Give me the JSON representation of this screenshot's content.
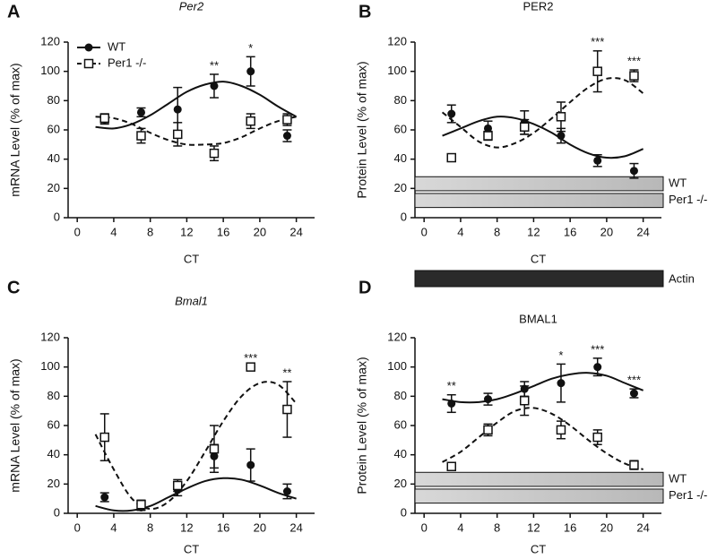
{
  "chart_data": [
    {
      "type": "line",
      "panel": "A",
      "title": "Per2",
      "title_italic": true,
      "ylabel": "mRNA Level (% of max)",
      "xlabel": "CT",
      "x": [
        3,
        7,
        11,
        15,
        19,
        23
      ],
      "xlim": [
        -1,
        26
      ],
      "xticks": [
        0,
        4,
        8,
        12,
        16,
        20,
        24
      ],
      "ylim": [
        0,
        120
      ],
      "yticks": [
        0,
        20,
        40,
        60,
        80,
        100,
        120
      ],
      "legend": "upper left",
      "series": [
        {
          "name": "WT",
          "color": "#111111",
          "marker": "circle",
          "dash": false,
          "values": [
            67,
            72,
            74,
            90,
            100,
            56
          ],
          "errors": [
            3,
            3,
            15,
            8,
            10,
            4
          ],
          "fit": {
            "x": [
              2,
              4,
              6,
              8,
              10,
              12,
              14,
              16,
              18,
              20,
              22,
              24
            ],
            "values": [
              62,
              61,
              64,
              70,
              78,
              86,
              91,
              93,
              90,
              84,
              76,
              69
            ]
          }
        },
        {
          "name": "Per1 -/-",
          "color": "#111111",
          "marker": "square",
          "dash": true,
          "values": [
            68,
            56,
            57,
            44,
            66,
            67
          ],
          "errors": [
            3,
            5,
            8,
            5,
            5,
            4
          ],
          "fit": {
            "x": [
              2,
              4,
              6,
              8,
              10,
              12,
              14,
              16,
              18,
              20,
              22,
              24
            ],
            "values": [
              69,
              68,
              64,
              58,
              53,
              50,
              50,
              51,
              55,
              61,
              66,
              69
            ]
          }
        }
      ],
      "annotations": [
        {
          "text": "**",
          "x": 15
        },
        {
          "text": "*",
          "x": 19
        }
      ]
    },
    {
      "type": "line",
      "panel": "B",
      "title": "PER2",
      "title_italic": false,
      "ylabel": "Protein Level (% of max)",
      "xlabel": "CT",
      "x": [
        3,
        7,
        11,
        15,
        19,
        23
      ],
      "xlim": [
        -1,
        26
      ],
      "xticks": [
        0,
        4,
        8,
        12,
        16,
        20,
        24
      ],
      "ylim": [
        0,
        120
      ],
      "yticks": [
        0,
        20,
        40,
        60,
        80,
        100,
        120
      ],
      "blots": [
        "WT",
        "Per1 -/-"
      ],
      "series": [
        {
          "name": "WT",
          "color": "#111111",
          "marker": "circle",
          "dash": false,
          "values": [
            71,
            61,
            65,
            56,
            39,
            32
          ],
          "errors": [
            6,
            5,
            8,
            5,
            4,
            5
          ],
          "fit": {
            "x": [
              2,
              4,
              6,
              8,
              10,
              12,
              14,
              16,
              18,
              20,
              22,
              24
            ],
            "values": [
              56,
              61,
              66,
              69,
              68,
              64,
              58,
              50,
              44,
              41,
              42,
              47
            ]
          }
        },
        {
          "name": "Per1 -/-",
          "color": "#111111",
          "marker": "square",
          "dash": true,
          "values": [
            41,
            56,
            62,
            69,
            100,
            97
          ],
          "errors": [
            0,
            3,
            5,
            10,
            14,
            4
          ],
          "fit": {
            "x": [
              2,
              4,
              6,
              8,
              10,
              12,
              14,
              16,
              18,
              20,
              22,
              24
            ],
            "values": [
              72,
              62,
              52,
              48,
              51,
              58,
              68,
              79,
              89,
              95,
              94,
              85
            ]
          }
        }
      ],
      "annotations": [
        {
          "text": "***",
          "x": 19
        },
        {
          "text": "***",
          "x": 23
        }
      ]
    },
    {
      "type": "line",
      "panel": "C",
      "title": "Bmal1",
      "title_italic": true,
      "ylabel": "mRNA Level (% of max)",
      "xlabel": "CT",
      "x": [
        3,
        7,
        11,
        15,
        19,
        23
      ],
      "xlim": [
        -1,
        26
      ],
      "xticks": [
        0,
        4,
        8,
        12,
        16,
        20,
        24
      ],
      "ylim": [
        0,
        120
      ],
      "yticks": [
        0,
        20,
        40,
        60,
        80,
        100,
        120
      ],
      "series": [
        {
          "name": "WT",
          "color": "#111111",
          "marker": "circle",
          "dash": false,
          "values": [
            11,
            4,
            16,
            39,
            33,
            15
          ],
          "errors": [
            3,
            2,
            4,
            8,
            11,
            5
          ],
          "fit": {
            "x": [
              2,
              4,
              6,
              8,
              10,
              12,
              14,
              16,
              18,
              20,
              22,
              24
            ],
            "values": [
              5,
              2,
              2,
              5,
              11,
              17,
              22,
              24,
              23,
              19,
              14,
              10
            ]
          }
        },
        {
          "name": "Per1 -/-",
          "color": "#111111",
          "marker": "square",
          "dash": true,
          "values": [
            52,
            6,
            19,
            44,
            100,
            71
          ],
          "errors": [
            16,
            3,
            4,
            16,
            0,
            19
          ],
          "fit": {
            "x": [
              2,
              4,
              6,
              8,
              10,
              12,
              14,
              16,
              18,
              20,
              22,
              24
            ],
            "values": [
              54,
              30,
              10,
              3,
              8,
              22,
              42,
              63,
              80,
              89,
              88,
              75
            ]
          }
        }
      ],
      "annotations": [
        {
          "text": "***",
          "x": 19
        },
        {
          "text": "**",
          "x": 23
        }
      ]
    },
    {
      "type": "line",
      "panel": "D",
      "title": "BMAL1",
      "title_italic": false,
      "ylabel": "Protein Level (% of max)",
      "xlabel": "CT",
      "x": [
        3,
        7,
        11,
        15,
        19,
        23
      ],
      "xlim": [
        -1,
        26
      ],
      "xticks": [
        0,
        4,
        8,
        12,
        16,
        20,
        24
      ],
      "ylim": [
        0,
        120
      ],
      "yticks": [
        0,
        20,
        40,
        60,
        80,
        100,
        120
      ],
      "blots": [
        "WT",
        "Per1 -/-"
      ],
      "series": [
        {
          "name": "WT",
          "color": "#111111",
          "marker": "circle",
          "dash": false,
          "values": [
            75,
            78,
            85,
            89,
            100,
            82
          ],
          "errors": [
            6,
            4,
            5,
            13,
            6,
            3
          ],
          "fit": {
            "x": [
              2,
              4,
              6,
              8,
              10,
              12,
              14,
              16,
              18,
              20,
              22,
              24
            ],
            "values": [
              78,
              76,
              76,
              78,
              82,
              87,
              92,
              95,
              96,
              94,
              89,
              84
            ]
          }
        },
        {
          "name": "Per1 -/-",
          "color": "#111111",
          "marker": "square",
          "dash": true,
          "values": [
            32,
            57,
            77,
            57,
            52,
            33
          ],
          "errors": [
            2,
            4,
            10,
            6,
            5,
            3
          ],
          "fit": {
            "x": [
              2,
              4,
              6,
              8,
              10,
              12,
              14,
              16,
              18,
              20,
              22,
              24
            ],
            "values": [
              35,
              42,
              52,
              62,
              70,
              72,
              68,
              60,
              50,
              41,
              34,
              30
            ]
          }
        }
      ],
      "annotations": [
        {
          "text": "**",
          "x": 3
        },
        {
          "text": "*",
          "x": 15
        },
        {
          "text": "***",
          "x": 19
        },
        {
          "text": "***",
          "x": 23
        }
      ]
    }
  ],
  "actin_label": "Actin"
}
